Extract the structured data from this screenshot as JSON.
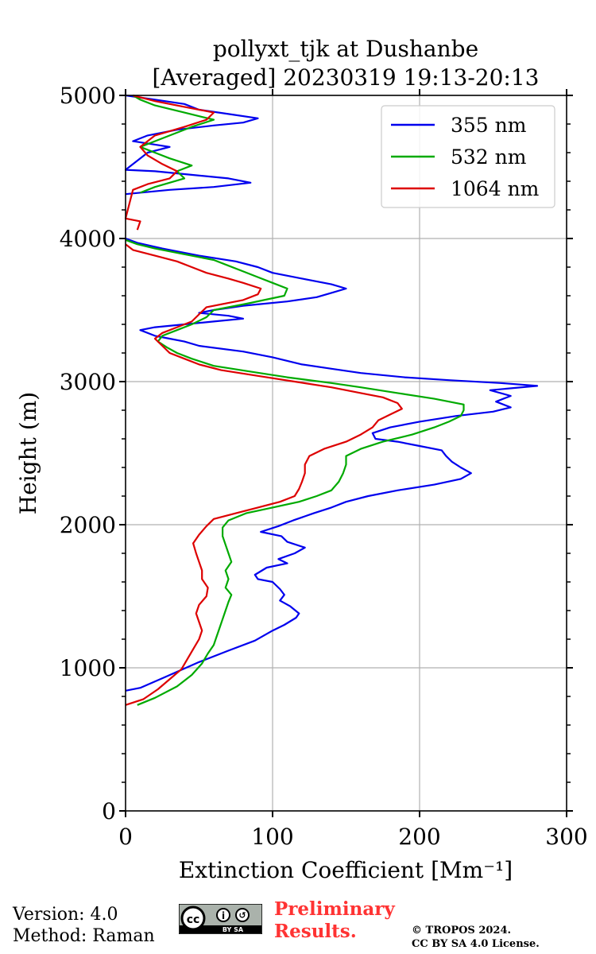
{
  "chart_data": {
    "type": "line",
    "title": "pollyxt_tjk at Dushanbe",
    "subtitle": "[Averaged] 20230319 19:13-20:13",
    "xlabel": "Extinction Coefficient [Mm⁻¹]",
    "ylabel": "Height (m)",
    "xlim": [
      0,
      300
    ],
    "ylim": [
      0,
      5000
    ],
    "xticks": [
      "0",
      "100",
      "200",
      "300"
    ],
    "yticks": [
      "0",
      "1000",
      "2000",
      "3000",
      "4000",
      "5000"
    ],
    "grid": true,
    "legend_position": "top-right",
    "series": [
      {
        "name": "355 nm",
        "color": "#0000ee",
        "points": [
          [
            0,
            840
          ],
          [
            10,
            860
          ],
          [
            28,
            940
          ],
          [
            50,
            1040
          ],
          [
            70,
            1120
          ],
          [
            88,
            1190
          ],
          [
            100,
            1260
          ],
          [
            108,
            1300
          ],
          [
            116,
            1350
          ],
          [
            118,
            1380
          ],
          [
            112,
            1430
          ],
          [
            105,
            1470
          ],
          [
            108,
            1510
          ],
          [
            105,
            1550
          ],
          [
            100,
            1600
          ],
          [
            90,
            1620
          ],
          [
            88,
            1650
          ],
          [
            96,
            1700
          ],
          [
            110,
            1730
          ],
          [
            104,
            1760
          ],
          [
            115,
            1800
          ],
          [
            122,
            1840
          ],
          [
            110,
            1880
          ],
          [
            106,
            1920
          ],
          [
            92,
            1950
          ],
          [
            104,
            1990
          ],
          [
            114,
            2030
          ],
          [
            128,
            2080
          ],
          [
            140,
            2120
          ],
          [
            150,
            2160
          ],
          [
            165,
            2200
          ],
          [
            185,
            2240
          ],
          [
            210,
            2280
          ],
          [
            228,
            2320
          ],
          [
            235,
            2360
          ],
          [
            228,
            2400
          ],
          [
            222,
            2440
          ],
          [
            218,
            2480
          ],
          [
            215,
            2520
          ],
          [
            200,
            2550
          ],
          [
            185,
            2580
          ],
          [
            170,
            2600
          ],
          [
            168,
            2640
          ],
          [
            180,
            2680
          ],
          [
            200,
            2720
          ],
          [
            225,
            2760
          ],
          [
            250,
            2790
          ],
          [
            262,
            2820
          ],
          [
            252,
            2860
          ],
          [
            262,
            2900
          ],
          [
            248,
            2940
          ],
          [
            280,
            2970
          ],
          [
            255,
            2990
          ],
          [
            220,
            3010
          ],
          [
            190,
            3030
          ],
          [
            160,
            3060
          ],
          [
            140,
            3090
          ],
          [
            120,
            3120
          ],
          [
            100,
            3170
          ],
          [
            80,
            3210
          ],
          [
            50,
            3250
          ],
          [
            40,
            3280
          ],
          [
            30,
            3300
          ],
          [
            20,
            3320
          ],
          [
            10,
            3360
          ],
          [
            20,
            3380
          ],
          [
            40,
            3400
          ],
          [
            60,
            3420
          ],
          [
            80,
            3440
          ],
          [
            70,
            3460
          ],
          [
            50,
            3480
          ],
          [
            60,
            3500
          ],
          [
            80,
            3530
          ],
          [
            110,
            3560
          ],
          [
            130,
            3590
          ],
          [
            140,
            3620
          ],
          [
            150,
            3650
          ],
          [
            140,
            3680
          ],
          [
            120,
            3720
          ],
          [
            100,
            3760
          ],
          [
            90,
            3800
          ],
          [
            75,
            3840
          ],
          [
            50,
            3880
          ],
          [
            25,
            3930
          ],
          [
            8,
            3970
          ],
          [
            0,
            4000
          ]
        ],
        "points_upper": [
          [
            0,
            4310
          ],
          [
            30,
            4340
          ],
          [
            60,
            4360
          ],
          [
            85,
            4390
          ],
          [
            70,
            4420
          ],
          [
            40,
            4450
          ],
          [
            20,
            4470
          ],
          [
            0,
            4480
          ],
          [
            15,
            4600
          ],
          [
            30,
            4640
          ],
          [
            5,
            4680
          ],
          [
            15,
            4720
          ],
          [
            35,
            4760
          ],
          [
            60,
            4790
          ],
          [
            80,
            4810
          ],
          [
            90,
            4840
          ],
          [
            70,
            4870
          ],
          [
            50,
            4900
          ],
          [
            40,
            4940
          ],
          [
            20,
            4970
          ],
          [
            0,
            5000
          ]
        ]
      },
      {
        "name": "532 nm",
        "color": "#00aa00",
        "points": [
          [
            8,
            740
          ],
          [
            20,
            790
          ],
          [
            35,
            870
          ],
          [
            45,
            950
          ],
          [
            52,
            1030
          ],
          [
            56,
            1100
          ],
          [
            60,
            1160
          ],
          [
            62,
            1220
          ],
          [
            64,
            1280
          ],
          [
            66,
            1340
          ],
          [
            68,
            1400
          ],
          [
            70,
            1460
          ],
          [
            72,
            1510
          ],
          [
            68,
            1560
          ],
          [
            70,
            1620
          ],
          [
            68,
            1680
          ],
          [
            72,
            1740
          ],
          [
            70,
            1800
          ],
          [
            68,
            1860
          ],
          [
            66,
            1920
          ],
          [
            66,
            1980
          ],
          [
            70,
            2030
          ],
          [
            82,
            2080
          ],
          [
            100,
            2120
          ],
          [
            118,
            2160
          ],
          [
            130,
            2200
          ],
          [
            140,
            2240
          ],
          [
            145,
            2300
          ],
          [
            148,
            2360
          ],
          [
            150,
            2420
          ],
          [
            150,
            2480
          ],
          [
            160,
            2530
          ],
          [
            175,
            2580
          ],
          [
            195,
            2630
          ],
          [
            210,
            2680
          ],
          [
            220,
            2720
          ],
          [
            228,
            2760
          ],
          [
            230,
            2800
          ],
          [
            230,
            2840
          ],
          [
            210,
            2880
          ],
          [
            185,
            2920
          ],
          [
            160,
            2960
          ],
          [
            140,
            2990
          ],
          [
            110,
            3030
          ],
          [
            85,
            3070
          ],
          [
            60,
            3110
          ],
          [
            45,
            3160
          ],
          [
            35,
            3200
          ],
          [
            28,
            3240
          ],
          [
            22,
            3280
          ],
          [
            25,
            3320
          ],
          [
            35,
            3360
          ],
          [
            45,
            3400
          ],
          [
            55,
            3450
          ],
          [
            60,
            3500
          ],
          [
            85,
            3550
          ],
          [
            108,
            3600
          ],
          [
            110,
            3650
          ],
          [
            100,
            3690
          ],
          [
            90,
            3730
          ],
          [
            80,
            3770
          ],
          [
            70,
            3810
          ],
          [
            60,
            3850
          ],
          [
            40,
            3890
          ],
          [
            20,
            3930
          ],
          [
            8,
            3960
          ],
          [
            0,
            3990
          ]
        ],
        "points_upper": [
          [
            10,
            4320
          ],
          [
            20,
            4360
          ],
          [
            40,
            4420
          ],
          [
            35,
            4470
          ],
          [
            45,
            4510
          ],
          [
            30,
            4560
          ],
          [
            20,
            4600
          ],
          [
            10,
            4640
          ],
          [
            25,
            4700
          ],
          [
            45,
            4780
          ],
          [
            60,
            4830
          ],
          [
            40,
            4880
          ],
          [
            20,
            4930
          ],
          [
            10,
            4970
          ],
          [
            5,
            5000
          ]
        ]
      },
      {
        "name": "1064 nm",
        "color": "#dd0000",
        "points": [
          [
            0,
            740
          ],
          [
            12,
            780
          ],
          [
            22,
            850
          ],
          [
            30,
            920
          ],
          [
            38,
            990
          ],
          [
            42,
            1060
          ],
          [
            46,
            1130
          ],
          [
            50,
            1200
          ],
          [
            52,
            1260
          ],
          [
            50,
            1320
          ],
          [
            48,
            1380
          ],
          [
            50,
            1440
          ],
          [
            55,
            1500
          ],
          [
            56,
            1560
          ],
          [
            52,
            1620
          ],
          [
            52,
            1680
          ],
          [
            50,
            1740
          ],
          [
            48,
            1800
          ],
          [
            46,
            1870
          ],
          [
            50,
            1930
          ],
          [
            55,
            1990
          ],
          [
            60,
            2040
          ],
          [
            75,
            2080
          ],
          [
            90,
            2120
          ],
          [
            105,
            2160
          ],
          [
            115,
            2200
          ],
          [
            118,
            2250
          ],
          [
            120,
            2300
          ],
          [
            122,
            2360
          ],
          [
            122,
            2420
          ],
          [
            125,
            2480
          ],
          [
            135,
            2530
          ],
          [
            150,
            2580
          ],
          [
            160,
            2630
          ],
          [
            168,
            2680
          ],
          [
            172,
            2730
          ],
          [
            180,
            2770
          ],
          [
            188,
            2810
          ],
          [
            185,
            2850
          ],
          [
            175,
            2890
          ],
          [
            160,
            2920
          ],
          [
            140,
            2960
          ],
          [
            115,
            3000
          ],
          [
            90,
            3040
          ],
          [
            65,
            3080
          ],
          [
            50,
            3120
          ],
          [
            40,
            3160
          ],
          [
            30,
            3200
          ],
          [
            25,
            3250
          ],
          [
            20,
            3300
          ],
          [
            25,
            3340
          ],
          [
            35,
            3380
          ],
          [
            45,
            3420
          ],
          [
            50,
            3470
          ],
          [
            55,
            3520
          ],
          [
            80,
            3570
          ],
          [
            90,
            3610
          ],
          [
            92,
            3650
          ],
          [
            80,
            3690
          ],
          [
            70,
            3720
          ],
          [
            55,
            3760
          ],
          [
            45,
            3800
          ],
          [
            35,
            3840
          ],
          [
            20,
            3880
          ],
          [
            5,
            3920
          ],
          [
            0,
            3960
          ]
        ],
        "points_upper": [
          [
            8,
            4060
          ],
          [
            10,
            4120
          ],
          [
            0,
            4140
          ],
          [
            5,
            4340
          ],
          [
            15,
            4380
          ],
          [
            30,
            4420
          ],
          [
            35,
            4470
          ],
          [
            25,
            4520
          ],
          [
            15,
            4580
          ],
          [
            10,
            4640
          ],
          [
            20,
            4720
          ],
          [
            40,
            4780
          ],
          [
            55,
            4830
          ],
          [
            60,
            4880
          ],
          [
            40,
            4920
          ],
          [
            20,
            4960
          ],
          [
            5,
            5000
          ]
        ]
      }
    ]
  },
  "footer": {
    "version": "Version: 4.0",
    "method": "Method: Raman",
    "preliminary_line1": "Preliminary",
    "preliminary_line2": "Results.",
    "copyright_line1": "© TROPOS 2024.",
    "copyright_line2": "CC BY SA 4.0 License.",
    "license_badge": "cc-by-sa",
    "license_badge_text": "BY  SA"
  }
}
